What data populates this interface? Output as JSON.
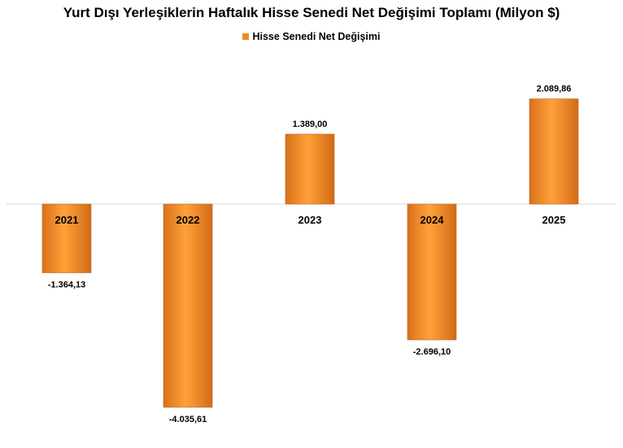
{
  "chart_data": {
    "type": "bar",
    "title": "Yurt Dışı Yerleşiklerin Haftalık Hisse Senedi Net Değişimi Toplamı (Milyon $)",
    "legend_position": "top",
    "grid": false,
    "categories": [
      "2021",
      "2022",
      "2023",
      "2024",
      "2025"
    ],
    "series": [
      {
        "name": "Hisse Senedi Net Değişimi",
        "values": [
          -1364.13,
          -4035.61,
          1389.0,
          -2696.1,
          2089.86
        ],
        "labels": [
          "-1.364,13",
          "-4.035,61",
          "1.389,00",
          "-2.696,10",
          "2.089,86"
        ],
        "color": "#F28A1E"
      }
    ],
    "ylim": [
      -4500,
      3100
    ]
  }
}
